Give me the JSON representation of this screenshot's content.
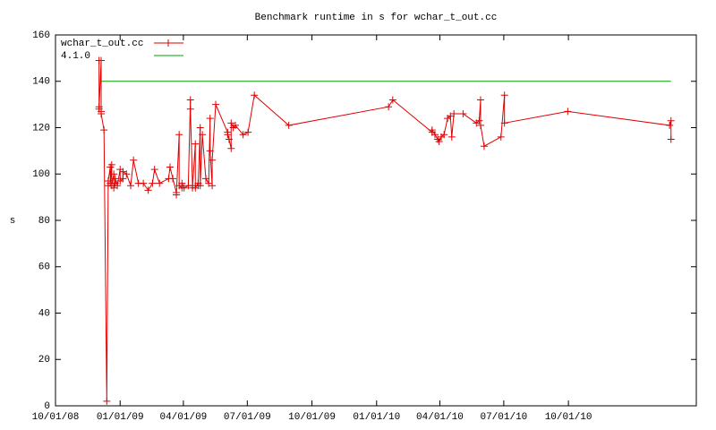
{
  "chart_data": {
    "type": "line",
    "title": "Benchmark runtime in s for wchar_t_out.cc",
    "y_label": "s",
    "xlim": [
      "2008-10-01",
      "2011-04-01"
    ],
    "xticks": [
      {
        "value": "2008-10-01",
        "label": "10/01/08"
      },
      {
        "value": "2009-01-01",
        "label": "01/01/09"
      },
      {
        "value": "2009-04-01",
        "label": "04/01/09"
      },
      {
        "value": "2009-07-01",
        "label": "07/01/09"
      },
      {
        "value": "2009-10-01",
        "label": "10/01/09"
      },
      {
        "value": "2010-01-01",
        "label": "01/01/10"
      },
      {
        "value": "2010-04-01",
        "label": "04/01/10"
      },
      {
        "value": "2010-07-01",
        "label": "07/01/10"
      },
      {
        "value": "2010-10-01",
        "label": "10/01/10"
      }
    ],
    "ylim": [
      0,
      160
    ],
    "yticks": [
      0,
      20,
      40,
      60,
      80,
      100,
      120,
      140,
      160
    ],
    "legend": "top-left",
    "series": [
      {
        "name": "wchar_t_out.cc",
        "color": "#e00000",
        "markers": true,
        "x": [
          "2008-12-02",
          "2008-12-02",
          "2008-12-02",
          "2008-12-05",
          "2008-12-05",
          "2008-12-05",
          "2008-12-09",
          "2008-12-13",
          "2008-12-15",
          "2008-12-15",
          "2008-12-18",
          "2008-12-18",
          "2008-12-20",
          "2008-12-20",
          "2008-12-23",
          "2008-12-23",
          "2008-12-25",
          "2008-12-25",
          "2008-12-28",
          "2009-01-01",
          "2009-01-01",
          "2009-01-05",
          "2009-01-05",
          "2009-01-10",
          "2009-01-16",
          "2009-01-20",
          "2009-01-27",
          "2009-02-03",
          "2009-02-10",
          "2009-02-16",
          "2009-02-19",
          "2009-02-26",
          "2009-03-11",
          "2009-03-13",
          "2009-03-17",
          "2009-03-22",
          "2009-03-22",
          "2009-03-26",
          "2009-03-26",
          "2009-03-30",
          "2009-03-30",
          "2009-04-02",
          "2009-04-08",
          "2009-04-11",
          "2009-04-11",
          "2009-04-14",
          "2009-04-14",
          "2009-04-18",
          "2009-04-18",
          "2009-04-22",
          "2009-04-22",
          "2009-04-25",
          "2009-04-25",
          "2009-04-28",
          "2009-05-03",
          "2009-05-07",
          "2009-05-09",
          "2009-05-09",
          "2009-05-12",
          "2009-05-12",
          "2009-05-17",
          "2009-06-03",
          "2009-06-03",
          "2009-06-05",
          "2009-06-08",
          "2009-06-08",
          "2009-06-11",
          "2009-06-14",
          "2009-06-25",
          "2009-07-02",
          "2009-07-11",
          "2009-08-29",
          "2010-01-18",
          "2010-01-24",
          "2010-03-21",
          "2010-03-21",
          "2010-03-25",
          "2010-03-29",
          "2010-03-31",
          "2010-04-03",
          "2010-04-07",
          "2010-04-12",
          "2010-04-16",
          "2010-04-18",
          "2010-04-21",
          "2010-05-04",
          "2010-05-23",
          "2010-05-27",
          "2010-05-29",
          "2010-05-29",
          "2010-06-03",
          "2010-06-27",
          "2010-07-02",
          "2010-07-02",
          "2010-09-30",
          "2011-02-22",
          "2011-02-24",
          "2011-02-24"
        ],
        "values": [
          149,
          129,
          128,
          149,
          127,
          126,
          119,
          2,
          95,
          97,
          103,
          96,
          104,
          95,
          100,
          94,
          96,
          98,
          95,
          102,
          97,
          98,
          101,
          100,
          95,
          106,
          96,
          96,
          93,
          96,
          102,
          96,
          98,
          103,
          98,
          92,
          91,
          117,
          95,
          94,
          96,
          94,
          95,
          132,
          128,
          95,
          94,
          113,
          94,
          96,
          95,
          120,
          95,
          117,
          98,
          96,
          124,
          110,
          95,
          106,
          130,
          118,
          117,
          115,
          111,
          122,
          120,
          121,
          117,
          118,
          134,
          121,
          129,
          132,
          118,
          119,
          117,
          115,
          114,
          116,
          117,
          124,
          125,
          116,
          126,
          126,
          122,
          123,
          132,
          121,
          112,
          116,
          134,
          122,
          127,
          121,
          123,
          115
        ]
      },
      {
        "name": "4.1.0",
        "color": "#00a000",
        "markers": false,
        "x": [
          "2008-12-05",
          "2011-02-24"
        ],
        "values": [
          140,
          140
        ]
      }
    ]
  }
}
